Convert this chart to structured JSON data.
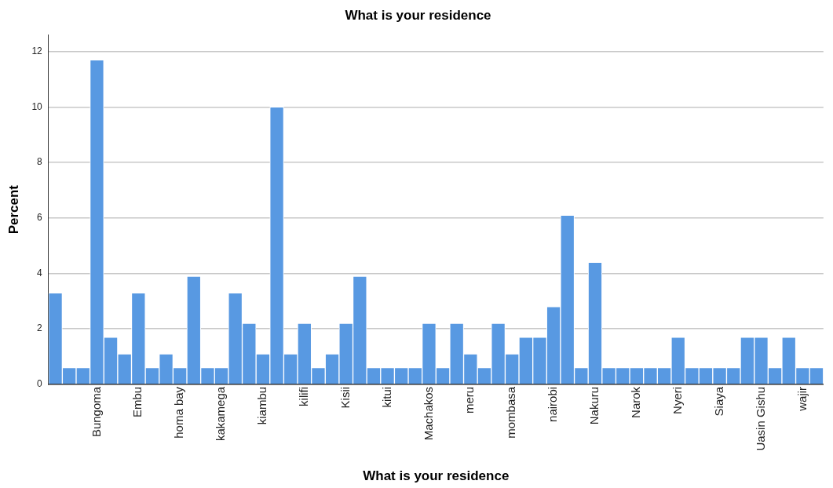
{
  "chart_data": {
    "type": "bar",
    "title": "What is your residence",
    "xlabel": "What is your residence",
    "ylabel": "Percent",
    "categories": [
      null,
      null,
      null,
      "Bungoma",
      null,
      null,
      "Embu",
      null,
      null,
      "homa bay",
      null,
      null,
      "kakamega",
      null,
      null,
      "kiambu",
      null,
      null,
      "kilifi",
      null,
      null,
      "Kisii",
      null,
      null,
      "kitui",
      null,
      null,
      "Machakos",
      null,
      null,
      "meru",
      null,
      null,
      "mombasa",
      null,
      null,
      "nairobi",
      null,
      null,
      "Nakuru",
      null,
      null,
      "Narok",
      null,
      null,
      "Nyeri",
      null,
      null,
      "Siaya",
      null,
      null,
      "Uasin Gishu",
      null,
      null,
      "wajir",
      null
    ],
    "values": [
      3.3,
      0.6,
      0.6,
      11.7,
      1.7,
      1.1,
      3.3,
      0.6,
      1.1,
      0.6,
      3.9,
      0.6,
      0.6,
      3.3,
      2.2,
      1.1,
      10,
      1.1,
      2.2,
      0.6,
      1.1,
      2.2,
      3.9,
      0.6,
      0.6,
      0.6,
      0.6,
      2.2,
      0.6,
      2.2,
      1.1,
      0.6,
      2.2,
      1.1,
      1.7,
      1.7,
      2.8,
      6.1,
      0.6,
      4.4,
      0.6,
      0.6,
      0.6,
      0.6,
      0.6,
      1.7,
      0.6,
      0.6,
      0.6,
      0.6,
      1.7,
      1.7,
      0.6,
      1.7,
      0.6,
      0.6
    ],
    "color": "#5899e2",
    "ylim": [
      0,
      12.6
    ],
    "yticks": [
      0,
      2,
      4,
      6,
      8,
      10,
      12
    ],
    "grid": "y"
  }
}
